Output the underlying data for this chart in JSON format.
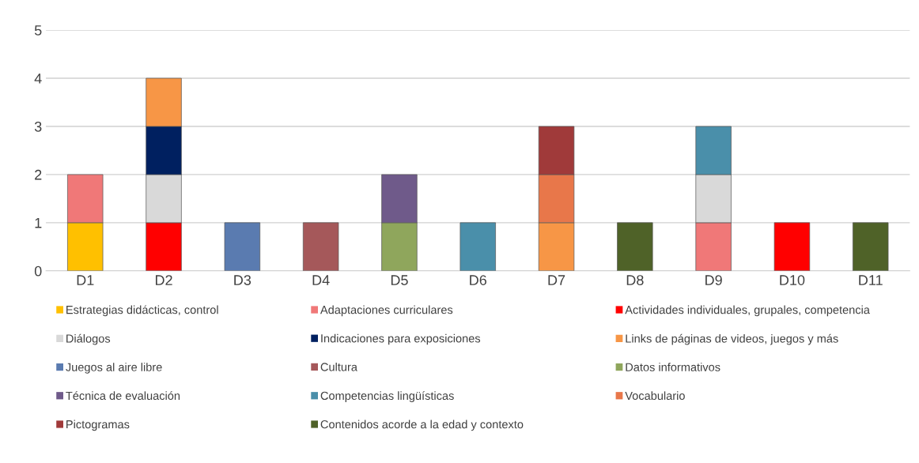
{
  "chart_data": {
    "type": "bar",
    "stacked": true,
    "categories": [
      "D1",
      "D2",
      "D3",
      "D4",
      "D5",
      "D6",
      "D7",
      "D8",
      "D9",
      "D10",
      "D11"
    ],
    "ylim": [
      0,
      5
    ],
    "yticks": [
      0,
      1,
      2,
      3,
      4,
      5
    ],
    "grid": "y",
    "legend": "bottom",
    "series": [
      {
        "name": "Estrategias didácticas, control",
        "color": "#ffc000",
        "values": [
          1,
          null,
          null,
          null,
          null,
          null,
          null,
          null,
          null,
          null,
          null
        ]
      },
      {
        "name": "Adaptaciones curriculares",
        "color": "#f07878",
        "values": [
          1,
          null,
          null,
          null,
          null,
          null,
          null,
          null,
          1,
          null,
          null
        ]
      },
      {
        "name": "Actividades individuales, grupales, competencia",
        "color": "#ff0000",
        "values": [
          null,
          1,
          null,
          null,
          null,
          null,
          null,
          null,
          null,
          1,
          null
        ]
      },
      {
        "name": "Diálogos",
        "color": "#d9d9d9",
        "values": [
          null,
          1,
          null,
          null,
          null,
          null,
          null,
          null,
          1,
          null,
          null
        ]
      },
      {
        "name": "Indicaciones para exposiciones",
        "color": "#002060",
        "values": [
          null,
          1,
          null,
          null,
          null,
          null,
          null,
          null,
          null,
          null,
          null
        ]
      },
      {
        "name": "Links de páginas de videos, juegos y más",
        "color": "#f79646",
        "values": [
          null,
          1,
          null,
          null,
          null,
          null,
          1,
          null,
          null,
          null,
          null
        ]
      },
      {
        "name": "Juegos al aire libre",
        "color": "#5a7bb0",
        "values": [
          null,
          null,
          1,
          null,
          null,
          null,
          null,
          null,
          null,
          null,
          null
        ]
      },
      {
        "name": "Cultura",
        "color": "#a5585a",
        "values": [
          null,
          null,
          null,
          1,
          null,
          null,
          null,
          null,
          null,
          null,
          null
        ]
      },
      {
        "name": "Datos informativos",
        "color": "#8fa65c",
        "values": [
          null,
          null,
          null,
          null,
          1,
          null,
          null,
          null,
          null,
          null,
          null
        ]
      },
      {
        "name": "Técnica de evaluación",
        "color": "#6f5a8a",
        "values": [
          null,
          null,
          null,
          null,
          1,
          null,
          null,
          null,
          null,
          null,
          null
        ]
      },
      {
        "name": "Competencias lingüísticas",
        "color": "#4a8faa",
        "values": [
          null,
          null,
          null,
          null,
          null,
          1,
          null,
          null,
          1,
          null,
          null
        ]
      },
      {
        "name": "Vocabulario",
        "color": "#e8774a",
        "values": [
          null,
          null,
          null,
          null,
          null,
          null,
          1,
          null,
          null,
          null,
          null
        ]
      },
      {
        "name": "Pictogramas",
        "color": "#a03a3a",
        "values": [
          null,
          null,
          null,
          null,
          null,
          null,
          1,
          null,
          null,
          null,
          null
        ]
      },
      {
        "name": "Contenidos acorde a la edad y contexto",
        "color": "#4f6228",
        "values": [
          null,
          null,
          null,
          null,
          null,
          null,
          null,
          1,
          null,
          null,
          1
        ]
      }
    ]
  }
}
